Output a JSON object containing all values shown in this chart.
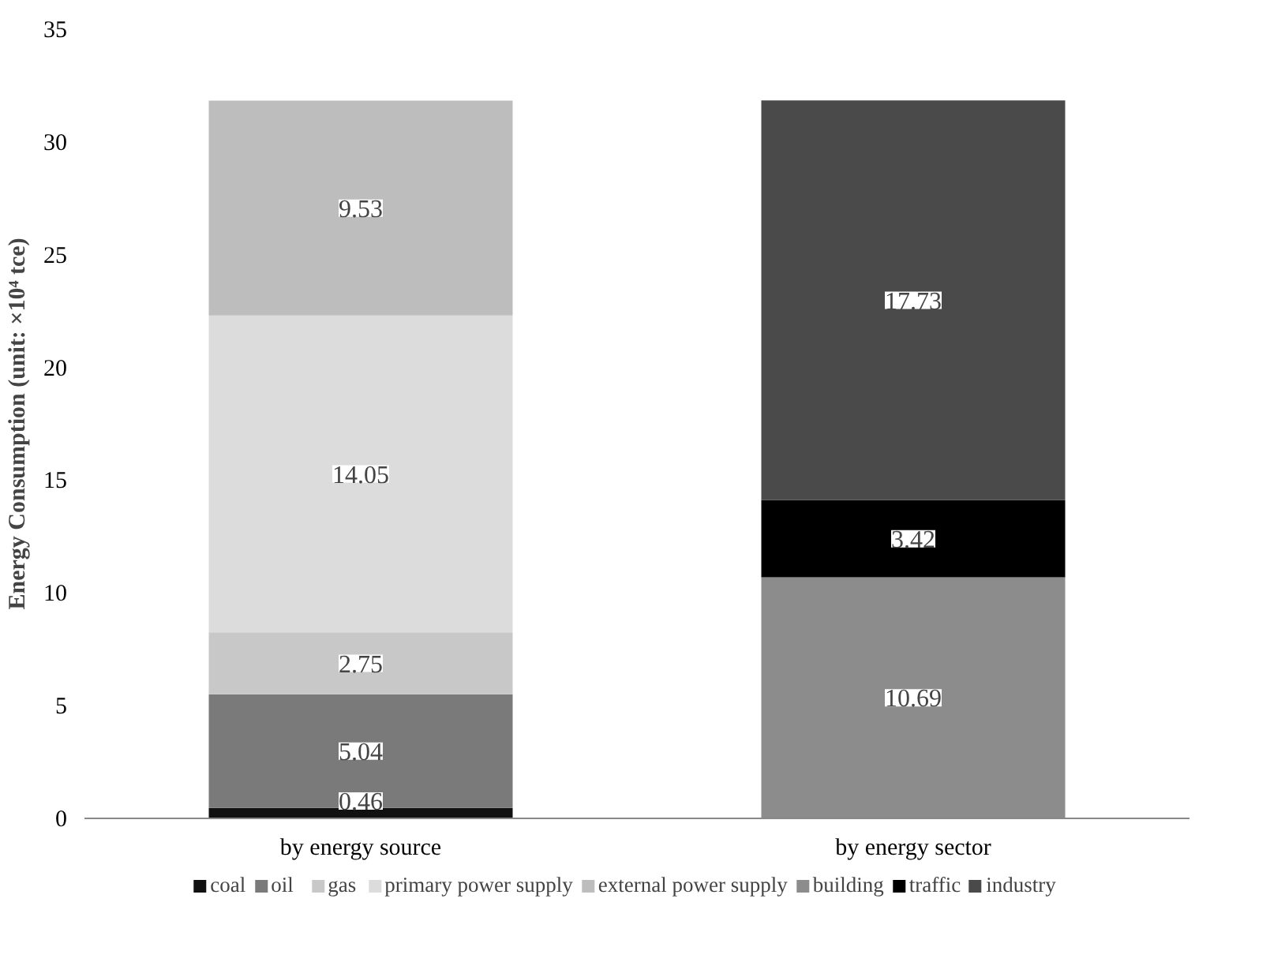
{
  "chart_data": {
    "type": "bar",
    "stacked": true,
    "ylabel": "Energy Consumption (unit: ×10⁴ tce)",
    "categories": [
      "by energy source",
      "by energy sector"
    ],
    "series": [
      {
        "name": "coal",
        "color": "#111111",
        "values": [
          0.46,
          null
        ]
      },
      {
        "name": "oil",
        "color": "#7a7a7a",
        "values": [
          5.04,
          null
        ]
      },
      {
        "name": "gas",
        "color": "#c8c8c8",
        "values": [
          2.75,
          null
        ]
      },
      {
        "name": "primary power supply",
        "color": "#dcdcdc",
        "values": [
          14.05,
          null
        ]
      },
      {
        "name": "external power supply",
        "color": "#bdbdbd",
        "values": [
          9.53,
          null
        ]
      },
      {
        "name": "building",
        "color": "#8c8c8c",
        "values": [
          null,
          10.69
        ]
      },
      {
        "name": "traffic",
        "color": "#000000",
        "values": [
          null,
          3.42
        ]
      },
      {
        "name": "industry",
        "color": "#4a4a4a",
        "values": [
          null,
          17.73
        ]
      }
    ],
    "ylim": [
      0,
      35
    ],
    "yticks": [
      0,
      5,
      10,
      15,
      20,
      25,
      30,
      35
    ],
    "grid": false,
    "legend": "bottom",
    "data_labels": true
  }
}
